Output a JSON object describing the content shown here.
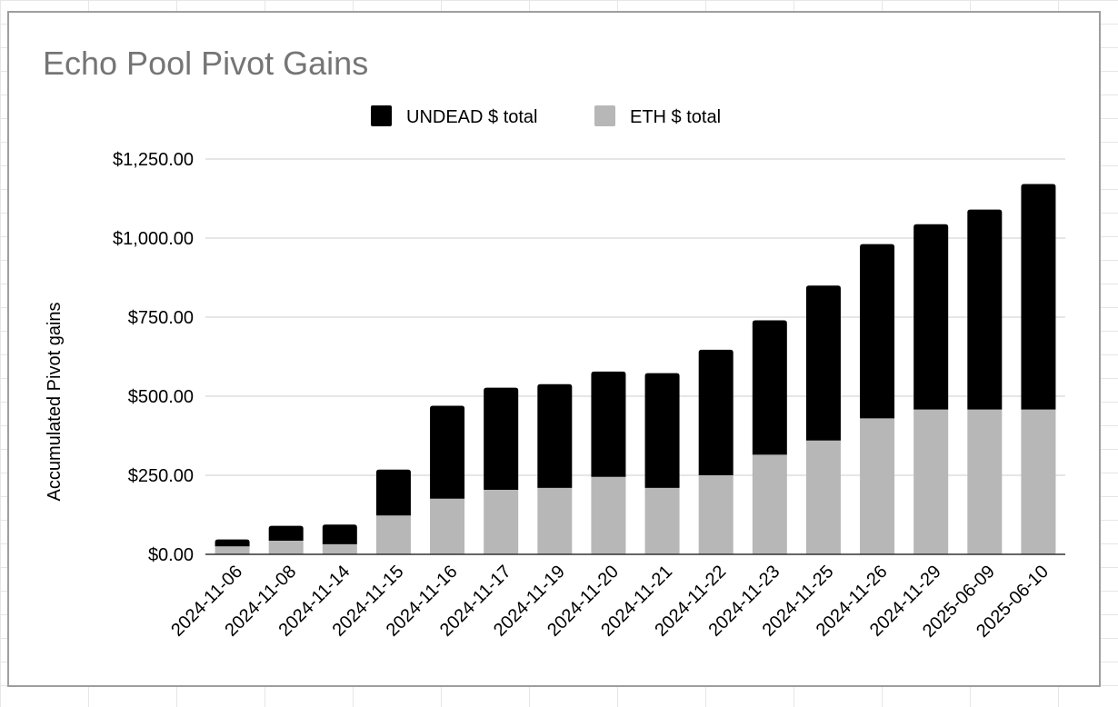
{
  "chart_data": {
    "type": "bar",
    "stacked": true,
    "title": "Echo Pool Pivot Gains",
    "xlabel": "",
    "ylabel": "Accumulated Pivot gains",
    "ylim": [
      0,
      1250
    ],
    "yticks": [
      0,
      250,
      500,
      750,
      1000,
      1250
    ],
    "ytick_labels": [
      "$0.00",
      "$250.00",
      "$500.00",
      "$750.00",
      "$1,000.00",
      "$1,250.00"
    ],
    "grid": true,
    "legend": "top",
    "categories": [
      "2024-11-06",
      "2024-11-08",
      "2024-11-14",
      "2024-11-15",
      "2024-11-16",
      "2024-11-17",
      "2024-11-19",
      "2024-11-20",
      "2024-11-21",
      "2024-11-22",
      "2024-11-23",
      "2024-11-25",
      "2024-11-26",
      "2024-11-29",
      "2025-06-09",
      "2025-06-10"
    ],
    "series": [
      {
        "name": "ETH $ total",
        "color": "#b7b7b7",
        "values": [
          25,
          43,
          32,
          123,
          176,
          204,
          210,
          245,
          210,
          250,
          315,
          360,
          430,
          458,
          458,
          458
        ]
      },
      {
        "name": "UNDEAD $ total",
        "color": "#000000",
        "values": [
          22,
          47,
          62,
          145,
          294,
          323,
          328,
          333,
          363,
          397,
          425,
          490,
          551,
          586,
          632,
          713
        ]
      }
    ],
    "legend_order": [
      "UNDEAD $ total",
      "ETH $ total"
    ]
  }
}
